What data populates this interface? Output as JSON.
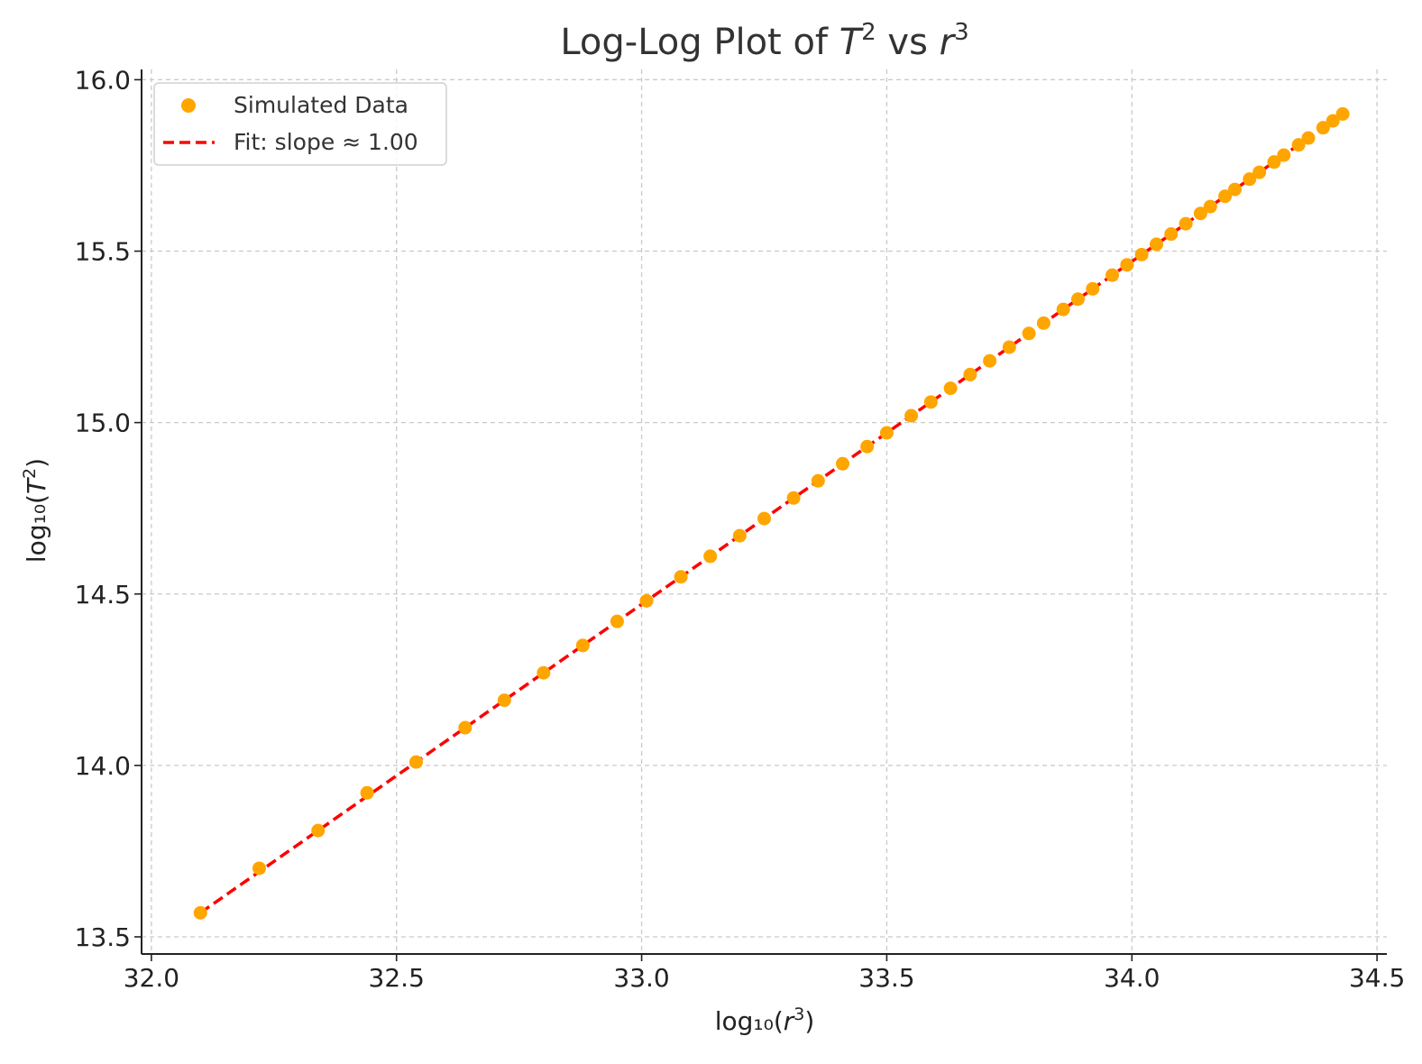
{
  "chart_data": {
    "type": "scatter",
    "title_parts": [
      "Log-Log Plot of ",
      "T",
      "2",
      " vs ",
      "r",
      "3"
    ],
    "xlabel_parts": [
      "log₁₀(",
      "r",
      "3",
      ")"
    ],
    "ylabel_parts": [
      "log₁₀(",
      "T",
      "2",
      ")"
    ],
    "xlim": [
      31.98,
      34.52
    ],
    "ylim": [
      13.45,
      16.03
    ],
    "xticks": [
      32.0,
      32.5,
      33.0,
      33.5,
      34.0,
      34.5
    ],
    "yticks": [
      13.5,
      14.0,
      14.5,
      15.0,
      15.5,
      16.0
    ],
    "xtick_labels": [
      "32.0",
      "32.5",
      "33.0",
      "33.5",
      "34.0",
      "34.5"
    ],
    "ytick_labels": [
      "13.5",
      "14.0",
      "14.5",
      "15.0",
      "15.5",
      "16.0"
    ],
    "grid": true,
    "legend_position": "top-left",
    "series": [
      {
        "name": "Simulated Data",
        "kind": "scatter",
        "color": "#FFA500",
        "x": [
          32.1,
          32.22,
          32.34,
          32.44,
          32.54,
          32.64,
          32.72,
          32.8,
          32.88,
          32.95,
          33.01,
          33.08,
          33.14,
          33.2,
          33.25,
          33.31,
          33.36,
          33.41,
          33.46,
          33.5,
          33.55,
          33.59,
          33.63,
          33.67,
          33.71,
          33.75,
          33.79,
          33.82,
          33.86,
          33.89,
          33.92,
          33.96,
          33.99,
          34.02,
          34.05,
          34.08,
          34.11,
          34.14,
          34.16,
          34.19,
          34.21,
          34.24,
          34.26,
          34.29,
          34.31,
          34.34,
          34.36,
          34.39,
          34.41,
          34.43
        ],
        "y": [
          13.57,
          13.7,
          13.81,
          13.92,
          14.01,
          14.11,
          14.19,
          14.27,
          14.35,
          14.42,
          14.48,
          14.55,
          14.61,
          14.67,
          14.72,
          14.78,
          14.83,
          14.88,
          14.93,
          14.97,
          15.02,
          15.06,
          15.1,
          15.14,
          15.18,
          15.22,
          15.26,
          15.29,
          15.33,
          15.36,
          15.39,
          15.43,
          15.46,
          15.49,
          15.52,
          15.55,
          15.58,
          15.61,
          15.63,
          15.66,
          15.68,
          15.71,
          15.73,
          15.76,
          15.78,
          15.81,
          15.83,
          15.86,
          15.88,
          15.9
        ]
      },
      {
        "name": "Fit: slope ≈ 1.00",
        "kind": "line",
        "style": "dashed",
        "color": "#FF0000",
        "x": [
          32.1,
          34.43
        ],
        "y": [
          13.57,
          15.9
        ]
      }
    ]
  }
}
